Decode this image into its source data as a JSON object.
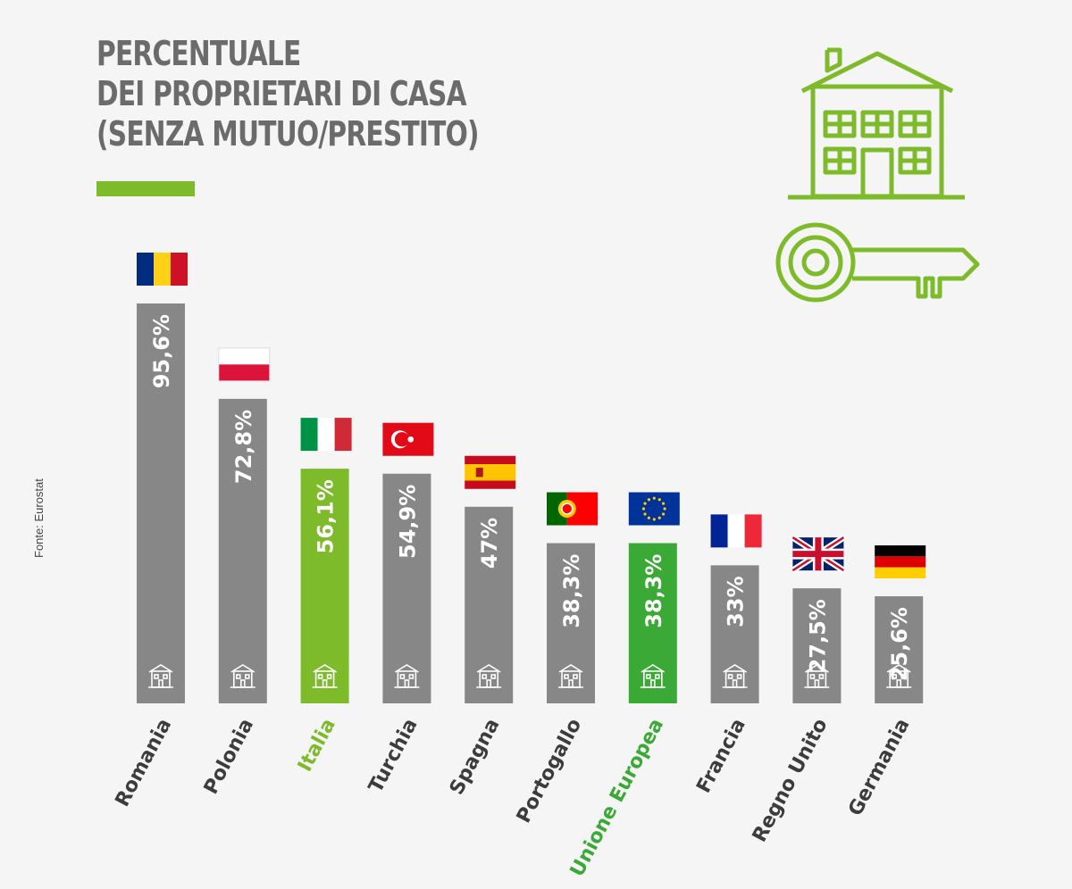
{
  "title_lines": [
    "PERCENTUALE",
    "DEI PROPRIETARI DI CASA",
    "(SENZA MUTUO/PRESTITO)"
  ],
  "source": "Fonte: Eurostat",
  "colors": {
    "background": "#f5f5f5",
    "accent": "#7dbb2a",
    "bar_default": "#878787",
    "bar_italia": "#7dbb2a",
    "bar_eu": "#3aa935",
    "label_default": "#3c3c3c"
  },
  "chart_data": {
    "type": "bar",
    "title": "PERCENTUALE DEI PROPRIETARI DI CASA (SENZA MUTUO/PRESTITO)",
    "xlabel": "",
    "ylabel": "",
    "ylim": [
      0,
      100
    ],
    "categories": [
      "Romania",
      "Polonia",
      "Italia",
      "Turchia",
      "Spagna",
      "Portogallo",
      "Unione Europea",
      "Francia",
      "Regno Unito",
      "Germania"
    ],
    "values": [
      95.6,
      72.8,
      56.1,
      54.9,
      47,
      38.3,
      38.3,
      33,
      27.5,
      25.6
    ],
    "value_labels": [
      "95,6%",
      "72,8%",
      "56,1%",
      "54,9%",
      "47%",
      "38,3%",
      "38,3%",
      "33%",
      "27,5%",
      "25,6%"
    ],
    "highlight": {
      "Italia": "bar_italia",
      "Unione Europea": "bar_eu"
    },
    "flags": [
      "romania-flag",
      "poland-flag",
      "italy-flag",
      "turkey-flag",
      "spain-flag",
      "portugal-flag",
      "eu-flag",
      "france-flag",
      "uk-flag",
      "germany-flag"
    ]
  },
  "icons": {
    "header": [
      "house-icon",
      "key-icon"
    ],
    "bar_base": "small-house-icon"
  }
}
